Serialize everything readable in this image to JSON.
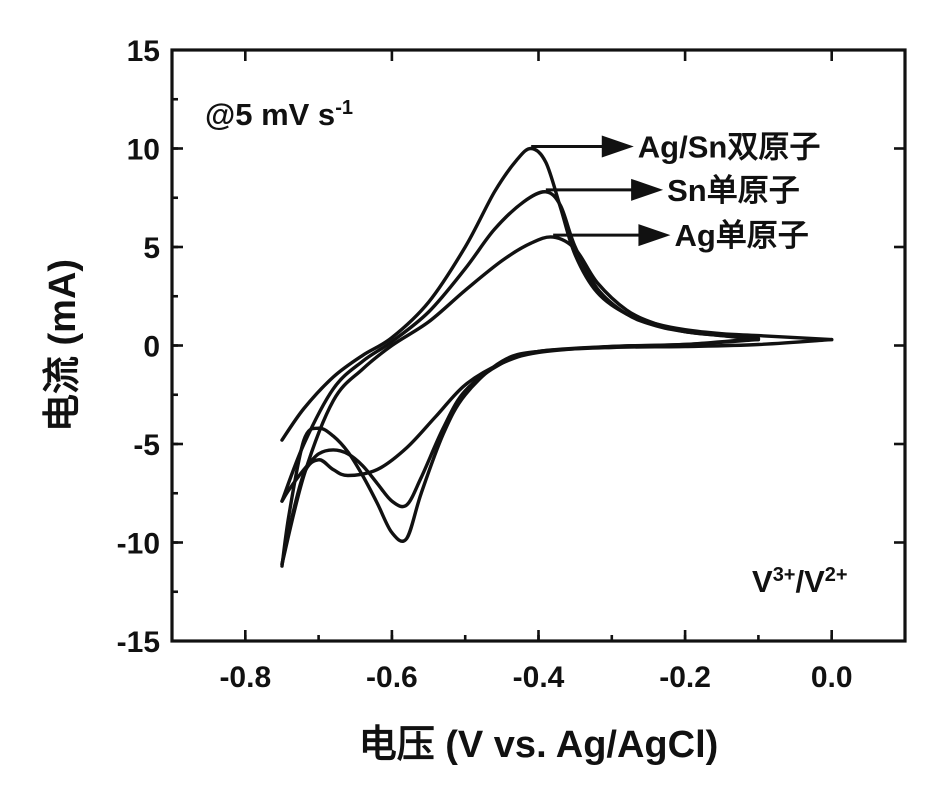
{
  "chart_data": {
    "type": "line",
    "title": "",
    "xlabel": "电压 (V vs. Ag/AgCl)",
    "ylabel": "电流 (mA)",
    "xlim": [
      -0.9,
      0.1
    ],
    "ylim": [
      -15,
      15
    ],
    "x_ticks": [
      -0.8,
      -0.6,
      -0.4,
      -0.2,
      0.0
    ],
    "x_tick_labels": [
      "-0.8",
      "-0.6",
      "-0.4",
      "-0.2",
      "0.0"
    ],
    "y_ticks": [
      -15,
      -10,
      -5,
      0,
      5,
      10,
      15
    ],
    "y_tick_labels": [
      "-15",
      "-10",
      "-5",
      "0",
      "5",
      "10",
      "15"
    ],
    "grid": false,
    "annotations": {
      "scan_rate_prefix": "@5 mV s",
      "scan_rate_exp": "-1",
      "redox_v1": "V",
      "redox_sup1": "3+",
      "redox_slash": "/V",
      "redox_sup2": "2+"
    },
    "series": [
      {
        "name": "Ag/Sn双原子",
        "forward_x": [
          -0.75,
          -0.72,
          -0.68,
          -0.64,
          -0.6,
          -0.55,
          -0.5,
          -0.46,
          -0.43,
          -0.41,
          -0.39,
          -0.37,
          -0.35,
          -0.32,
          -0.28,
          -0.24,
          -0.2,
          -0.15,
          -0.1,
          0.0
        ],
        "forward_y": [
          -4.8,
          -3.2,
          -1.6,
          -0.5,
          0.4,
          2.2,
          5.0,
          7.8,
          9.4,
          10.0,
          9.3,
          7.0,
          4.6,
          2.7,
          1.6,
          1.1,
          0.8,
          0.6,
          0.5,
          0.3
        ],
        "reverse_x": [
          0.0,
          -0.1,
          -0.2,
          -0.3,
          -0.4,
          -0.45,
          -0.5,
          -0.53,
          -0.56,
          -0.58,
          -0.6,
          -0.62,
          -0.64,
          -0.66,
          -0.68,
          -0.7,
          -0.72,
          -0.74,
          -0.75
        ],
        "reverse_y": [
          0.3,
          0.05,
          -0.05,
          -0.1,
          -0.3,
          -0.8,
          -2.5,
          -4.5,
          -7.5,
          -9.8,
          -9.5,
          -8.0,
          -6.6,
          -5.4,
          -4.6,
          -4.2,
          -4.8,
          -8.5,
          -11.2
        ]
      },
      {
        "name": "Sn单原子",
        "forward_x": [
          -0.75,
          -0.72,
          -0.68,
          -0.64,
          -0.6,
          -0.55,
          -0.5,
          -0.46,
          -0.42,
          -0.39,
          -0.37,
          -0.35,
          -0.32,
          -0.28,
          -0.24,
          -0.2,
          -0.15,
          -0.1
        ],
        "forward_y": [
          -7.9,
          -5.0,
          -2.2,
          -0.8,
          0.2,
          1.7,
          3.9,
          5.9,
          7.3,
          7.8,
          7.1,
          5.0,
          2.9,
          1.6,
          1.0,
          0.7,
          0.5,
          0.35
        ],
        "reverse_x": [
          -0.1,
          -0.2,
          -0.3,
          -0.4,
          -0.45,
          -0.5,
          -0.53,
          -0.56,
          -0.58,
          -0.6,
          -0.62,
          -0.64,
          -0.66,
          -0.68,
          -0.7,
          -0.72,
          -0.74,
          -0.75
        ],
        "reverse_y": [
          0.35,
          0.05,
          -0.05,
          -0.3,
          -0.9,
          -2.3,
          -4.2,
          -6.7,
          -8.1,
          -7.9,
          -7.0,
          -6.1,
          -5.5,
          -5.3,
          -5.5,
          -6.3,
          -7.3,
          -7.9
        ]
      },
      {
        "name": "Ag单原子",
        "forward_x": [
          -0.75,
          -0.72,
          -0.68,
          -0.64,
          -0.6,
          -0.55,
          -0.5,
          -0.45,
          -0.41,
          -0.38,
          -0.35,
          -0.32,
          -0.28,
          -0.24,
          -0.2,
          -0.15,
          -0.1
        ],
        "forward_y": [
          -11.1,
          -6.6,
          -2.8,
          -1.2,
          0.0,
          1.2,
          2.8,
          4.3,
          5.2,
          5.5,
          4.9,
          3.2,
          1.8,
          1.1,
          0.7,
          0.5,
          0.3
        ],
        "reverse_x": [
          -0.1,
          -0.2,
          -0.3,
          -0.4,
          -0.45,
          -0.5,
          -0.54,
          -0.58,
          -0.62,
          -0.66,
          -0.68,
          -0.7,
          -0.72,
          -0.74,
          -0.75
        ],
        "reverse_y": [
          0.3,
          0.05,
          -0.05,
          -0.35,
          -0.9,
          -2.0,
          -3.6,
          -5.2,
          -6.3,
          -6.6,
          -6.3,
          -5.8,
          -6.5,
          -9.3,
          -11.1
        ]
      }
    ],
    "legend_arrows": [
      {
        "label": "Ag/Sn双原子",
        "from_x": -0.41,
        "to_x": -0.27,
        "y": 10.0
      },
      {
        "label": "Sn单原子",
        "from_x": -0.39,
        "to_x": -0.23,
        "y": 7.8
      },
      {
        "label": "Ag单原子",
        "from_x": -0.38,
        "to_x": -0.22,
        "y": 5.5
      }
    ]
  }
}
